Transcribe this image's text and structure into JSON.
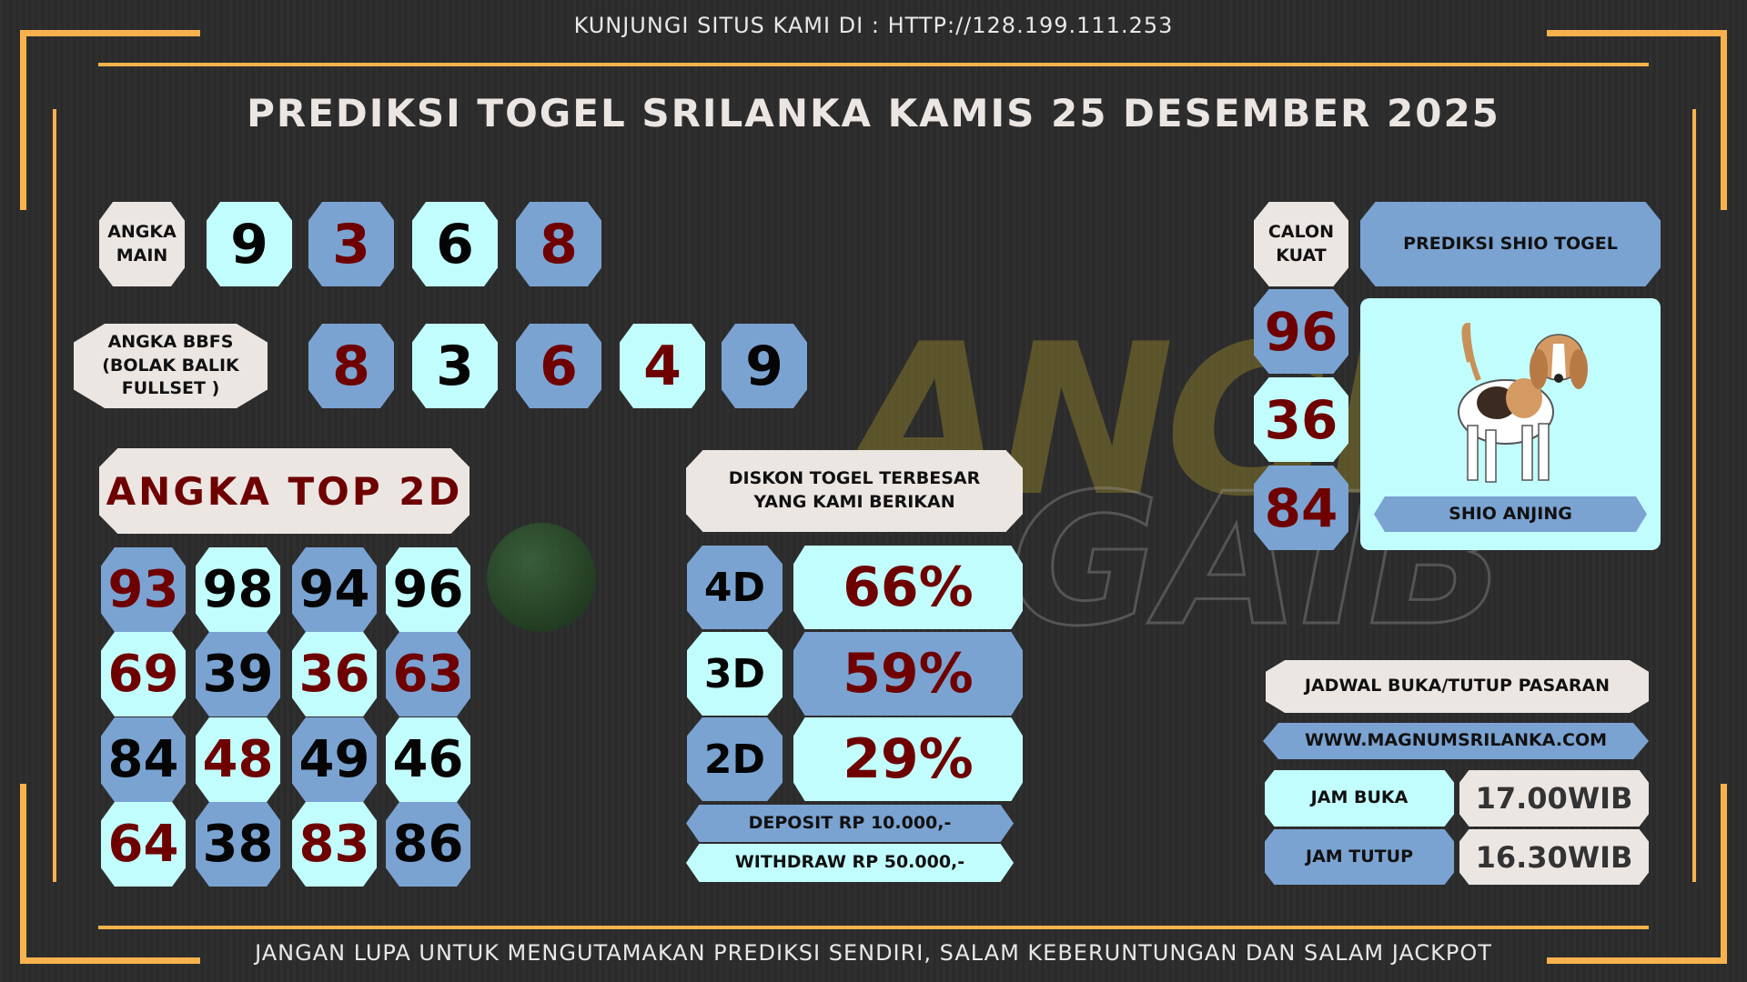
{
  "header": {
    "visit": "KUNJUNGI SITUS KAMI DI : HTTP://128.199.111.253",
    "title": "PREDIKSI TOGEL SRILANKA KAMIS 25 DESEMBER 2025"
  },
  "watermark": "ANGKA GAIB",
  "angka_main": {
    "label": "ANGKA MAIN",
    "digits": [
      {
        "v": "9",
        "bg": "cy",
        "fg": "blk"
      },
      {
        "v": "3",
        "bg": "bl",
        "fg": "red"
      },
      {
        "v": "6",
        "bg": "cy",
        "fg": "blk"
      },
      {
        "v": "8",
        "bg": "bl",
        "fg": "red"
      }
    ]
  },
  "bbfs": {
    "label": "ANGKA BBFS (BOLAK BALIK FULLSET )",
    "digits": [
      {
        "v": "8",
        "bg": "bl",
        "fg": "red"
      },
      {
        "v": "3",
        "bg": "cy",
        "fg": "blk"
      },
      {
        "v": "6",
        "bg": "bl",
        "fg": "red"
      },
      {
        "v": "4",
        "bg": "cy",
        "fg": "red"
      },
      {
        "v": "9",
        "bg": "bl",
        "fg": "blk"
      }
    ]
  },
  "top2d": {
    "title": "ANGKA TOP 2D",
    "cells": [
      [
        {
          "v": "93",
          "bg": "bl",
          "fg": "red"
        },
        {
          "v": "98",
          "bg": "cy",
          "fg": "blk"
        },
        {
          "v": "94",
          "bg": "bl",
          "fg": "blk"
        },
        {
          "v": "96",
          "bg": "cy",
          "fg": "blk"
        }
      ],
      [
        {
          "v": "69",
          "bg": "cy",
          "fg": "red"
        },
        {
          "v": "39",
          "bg": "bl",
          "fg": "blk"
        },
        {
          "v": "36",
          "bg": "cy",
          "fg": "red"
        },
        {
          "v": "63",
          "bg": "bl",
          "fg": "red"
        }
      ],
      [
        {
          "v": "84",
          "bg": "bl",
          "fg": "blk"
        },
        {
          "v": "48",
          "bg": "cy",
          "fg": "red"
        },
        {
          "v": "49",
          "bg": "bl",
          "fg": "blk"
        },
        {
          "v": "46",
          "bg": "cy",
          "fg": "blk"
        }
      ],
      [
        {
          "v": "64",
          "bg": "cy",
          "fg": "red"
        },
        {
          "v": "38",
          "bg": "bl",
          "fg": "blk"
        },
        {
          "v": "83",
          "bg": "cy",
          "fg": "red"
        },
        {
          "v": "86",
          "bg": "bl",
          "fg": "blk"
        }
      ]
    ]
  },
  "diskon": {
    "title": "DISKON TOGEL TERBESAR YANG KAMI BERIKAN",
    "rows": [
      {
        "label": "4D",
        "value": "66%",
        "lbg": "bl",
        "vbg": "cy"
      },
      {
        "label": "3D",
        "value": "59%",
        "lbg": "cy",
        "vbg": "bl"
      },
      {
        "label": "2D",
        "value": "29%",
        "lbg": "bl",
        "vbg": "cy"
      }
    ],
    "deposit": "DEPOSIT RP 10.000,-",
    "withdraw": "WITHDRAW RP 50.000,-"
  },
  "calon": {
    "label": "CALON KUAT",
    "numbers": [
      {
        "v": "96",
        "bg": "bl"
      },
      {
        "v": "36",
        "bg": "cy"
      },
      {
        "v": "84",
        "bg": "bl"
      }
    ]
  },
  "shio": {
    "title": "PREDIKSI SHIO TOGEL",
    "name": "SHIO ANJING"
  },
  "jadwal": {
    "title": "JADWAL BUKA/TUTUP PASARAN",
    "site": "WWW.MAGNUMSRILANKA.COM",
    "buka_label": "JAM BUKA",
    "buka": "17.00WIB",
    "tutup_label": "JAM TUTUP",
    "tutup": "16.30WIB"
  },
  "footer": "JANGAN LUPA UNTUK MENGUTAMAKAN PREDIKSI SENDIRI, SALAM KEBERUNTUNGAN DAN SALAM JACKPOT"
}
